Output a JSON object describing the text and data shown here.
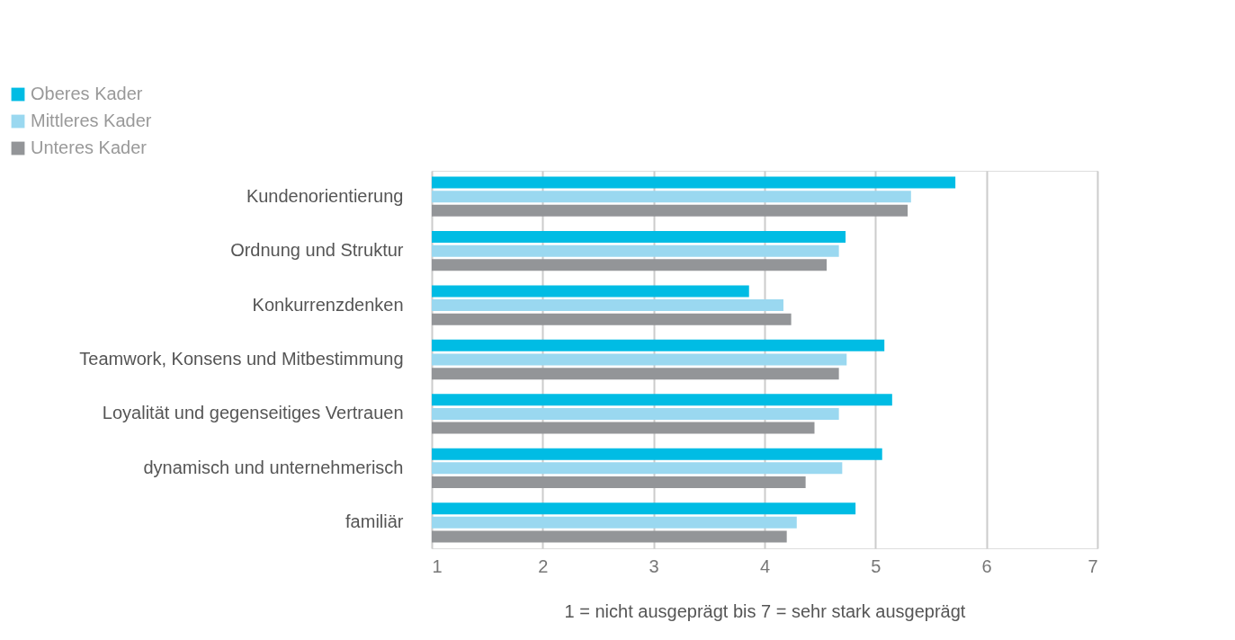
{
  "chart_data": {
    "type": "bar",
    "orientation": "horizontal",
    "categories": [
      "Kundenorientierung",
      "Ordnung und Struktur",
      "Konkurrenzdenken",
      "Teamwork, Konsens und Mitbestimmung",
      "Loyalität und gegenseitiges Vertrauen",
      "dynamisch und unternehmerisch",
      "familiär"
    ],
    "series": [
      {
        "name": "Oberes Kader",
        "color": "#00bce4",
        "values": [
          5.72,
          4.73,
          3.86,
          5.08,
          5.15,
          5.06,
          4.82
        ]
      },
      {
        "name": "Mittleres Kader",
        "color": "#9ad8f0",
        "values": [
          5.32,
          4.67,
          4.17,
          4.74,
          4.67,
          4.7,
          4.29
        ]
      },
      {
        "name": "Unteres Kader",
        "color": "#939598",
        "values": [
          5.29,
          4.56,
          4.24,
          4.67,
          4.45,
          4.37,
          4.2
        ]
      }
    ],
    "xlabel": "1 = nicht ausgeprägt bis 7 = sehr stark ausgeprägt",
    "xlim": [
      1,
      7
    ],
    "xticks": [
      1,
      2,
      3,
      4,
      5,
      6,
      7
    ],
    "grid": "x",
    "legend": "top left"
  }
}
